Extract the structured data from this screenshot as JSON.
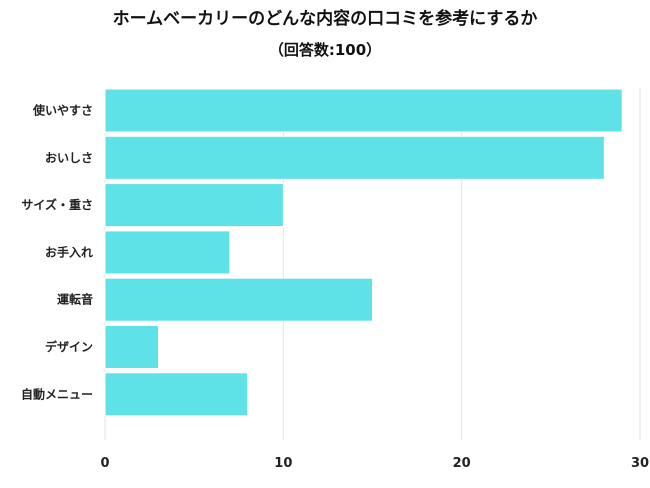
{
  "chart_data": {
    "type": "bar",
    "orientation": "horizontal",
    "title": "ホームベーカリーのどんな内容の口コミを参考にするか",
    "subtitle": "（回答数:100）",
    "categories": [
      "使いやすさ",
      "おいしさ",
      "サイズ・重さ",
      "お手入れ",
      "運転音",
      "デザイン",
      "自動メニュー"
    ],
    "values": [
      29,
      28,
      10,
      7,
      15,
      3,
      8
    ],
    "xlim": [
      0,
      30
    ],
    "xticks": [
      0,
      10,
      20,
      30
    ],
    "grid": true,
    "bar_color": "#5ee1e7",
    "bar_edge_color": "#ffffff"
  }
}
